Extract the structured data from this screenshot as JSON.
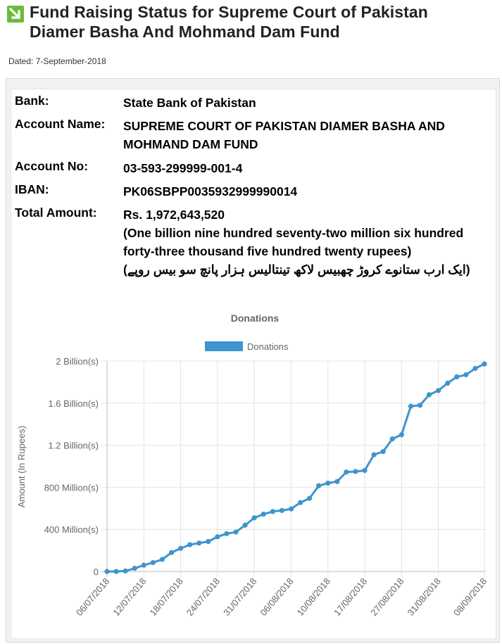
{
  "header": {
    "title_line1": "Fund Raising Status for Supreme Court of Pakistan",
    "title_line2": "Diamer Basha And Mohmand Dam Fund",
    "dated": "Dated: 7-September-2018",
    "icon": "arrow-down-right-icon",
    "icon_color": "#6dbb3c"
  },
  "account": {
    "bank_label": "Bank:",
    "bank_value": "State Bank of Pakistan",
    "name_label": "Account Name:",
    "name_value": "SUPREME COURT OF PAKISTAN DIAMER BASHA AND MOHMAND DAM FUND",
    "no_label": "Account No:",
    "no_value": "03-593-299999-001-4",
    "iban_label": "IBAN:",
    "iban_value": "PK06SBPP0035932999990014",
    "total_label": "Total Amount:",
    "total_value": "Rs. 1,972,643,520",
    "total_words": "(One billion nine hundred seventy-two million six hundred forty-three thousand five hundred twenty rupees)",
    "total_urdu": "(ایک ارب ستانوے کروڑ چھبیس لاکھ تینتالیس ہزار پانچ سو بیس روپے)"
  },
  "chart_data": {
    "type": "line",
    "title": "Donations",
    "ylabel": "Amount (In Rupees)",
    "legend": "top",
    "grid": true,
    "color": "#3e95cd",
    "series": [
      {
        "name": "Donations"
      }
    ],
    "ylim": [
      0,
      2000000000
    ],
    "y_ticks": [
      {
        "value": 0,
        "label": "0"
      },
      {
        "value": 400000000,
        "label": "400 Million(s)"
      },
      {
        "value": 800000000,
        "label": "800 Million(s)"
      },
      {
        "value": 1200000000,
        "label": "1.2 Billion(s)"
      },
      {
        "value": 1600000000,
        "label": "1.6 Billion(s)"
      },
      {
        "value": 2000000000,
        "label": "2 Billion(s)"
      }
    ],
    "x_ticks": [
      {
        "index": 0,
        "label": "06/07/2018"
      },
      {
        "index": 4,
        "label": "12/07/2018"
      },
      {
        "index": 8,
        "label": "18/07/2018"
      },
      {
        "index": 12,
        "label": "24/07/2018"
      },
      {
        "index": 16,
        "label": "31/07/2018"
      },
      {
        "index": 20,
        "label": "06/08/2018"
      },
      {
        "index": 24,
        "label": "10/08/2018"
      },
      {
        "index": 28,
        "label": "17/08/2018"
      },
      {
        "index": 32,
        "label": "27/08/2018"
      },
      {
        "index": 36,
        "label": "31/08/2018"
      },
      {
        "index": 41,
        "label": "08/09/2018"
      }
    ],
    "values": [
      0,
      0,
      5000000,
      30000000,
      60000000,
      85000000,
      115000000,
      180000000,
      220000000,
      255000000,
      270000000,
      285000000,
      330000000,
      360000000,
      375000000,
      440000000,
      510000000,
      545000000,
      570000000,
      580000000,
      595000000,
      655000000,
      695000000,
      815000000,
      840000000,
      855000000,
      945000000,
      950000000,
      960000000,
      1110000000,
      1140000000,
      1260000000,
      1300000000,
      1570000000,
      1580000000,
      1680000000,
      1720000000,
      1790000000,
      1850000000,
      1870000000,
      1930000000,
      1972643520
    ]
  }
}
